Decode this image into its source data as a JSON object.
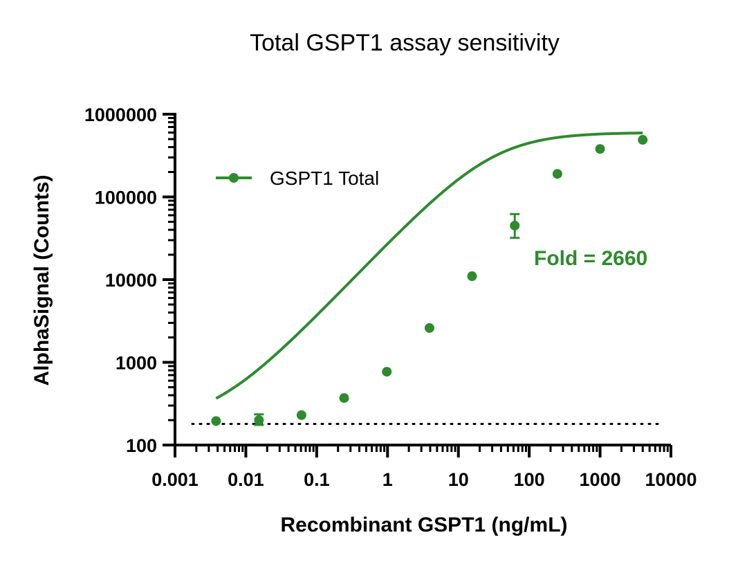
{
  "chart_data": {
    "type": "scatter",
    "title": "Total GSPT1 assay sensitivity",
    "xlabel": "Recombinant GSPT1 (ng/mL)",
    "ylabel": "AlphaSignal (Counts)",
    "x_scale": "log",
    "y_scale": "log",
    "xlim": [
      0.001,
      10000
    ],
    "ylim": [
      100,
      1000000
    ],
    "x_ticks": [
      "0.001",
      "0.01",
      "0.1",
      "1",
      "10",
      "100",
      "1000",
      "10000"
    ],
    "y_ticks": [
      "100",
      "1000",
      "10000",
      "100000",
      "1000000"
    ],
    "color": "#2e8b2e",
    "series": [
      {
        "name": "GSPT1 Total",
        "x": [
          0.0038,
          0.0153,
          0.061,
          0.244,
          0.977,
          3.91,
          15.6,
          62.5,
          250,
          1000,
          4000
        ],
        "y": [
          195,
          200,
          230,
          370,
          770,
          2600,
          11000,
          45000,
          190000,
          380000,
          490000
        ],
        "err_low": [
          190,
          175,
          220,
          355,
          745,
          2520,
          10600,
          32000,
          182000,
          370000,
          480000
        ],
        "err_high": [
          200,
          235,
          240,
          385,
          795,
          2680,
          11400,
          62000,
          198000,
          390000,
          500000
        ]
      }
    ],
    "fit_curve": {
      "bottom": 180,
      "top": 600000,
      "ec50": 30,
      "hill": 0.9
    },
    "baseline": 180,
    "annotation": "Fold = 2660",
    "legend_position": "top-left",
    "grid": false
  }
}
